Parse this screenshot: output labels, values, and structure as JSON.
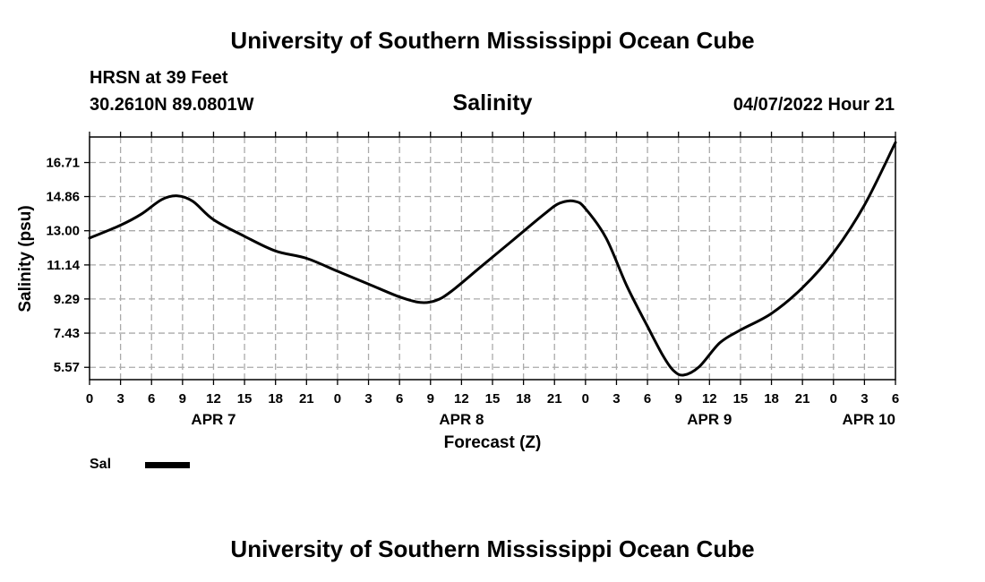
{
  "header": {
    "institution": "University of Southern Mississippi Ocean Cube",
    "station": "HRSN at 39 Feet",
    "coordinates": "30.2610N  89.0801W",
    "datetime": "04/07/2022 Hour 21"
  },
  "footer": {
    "institution": "University of Southern Mississippi Ocean Cube"
  },
  "legend": {
    "label": "Sal"
  },
  "chart_data": {
    "type": "line",
    "title": "Salinity",
    "xlabel": "Forecast (Z)",
    "ylabel": "Salinity (psu)",
    "x_unit": "hours since APR 7 00Z",
    "xlim": [
      0,
      78
    ],
    "ylim": [
      4.9,
      18.1
    ],
    "grid": true,
    "y_ticks": [
      "5.57",
      "7.43",
      "9.29",
      "11.14",
      "13.00",
      "14.86",
      "16.71"
    ],
    "y_tick_values": [
      5.57,
      7.43,
      9.29,
      11.14,
      13.0,
      14.86,
      16.71
    ],
    "x_ticks": [
      "0",
      "3",
      "6",
      "9",
      "12",
      "15",
      "18",
      "21",
      "0",
      "3",
      "6",
      "9",
      "12",
      "15",
      "18",
      "21",
      "0",
      "3",
      "6",
      "9",
      "12",
      "15",
      "18",
      "21",
      "0",
      "3",
      "6"
    ],
    "date_labels": [
      {
        "label": "APR 7",
        "hour": 12
      },
      {
        "label": "APR 8",
        "hour": 36
      },
      {
        "label": "APR 9",
        "hour": 60
      },
      {
        "label": "APR 10",
        "hour": 78
      }
    ],
    "series": [
      {
        "name": "Sal",
        "x": [
          0,
          3,
          5,
          7,
          8.5,
          10,
          12,
          15,
          18,
          21,
          24,
          27,
          30,
          32,
          33.5,
          35,
          38,
          41,
          44,
          45.5,
          47,
          48,
          50,
          52,
          54,
          55.5,
          56.5,
          57.5,
          59,
          61,
          63,
          66,
          69,
          72,
          75,
          78
        ],
        "y": [
          12.6,
          13.3,
          13.9,
          14.7,
          14.9,
          14.6,
          13.6,
          12.7,
          11.9,
          11.5,
          10.8,
          10.1,
          9.4,
          9.1,
          9.2,
          9.7,
          11.1,
          12.5,
          13.9,
          14.5,
          14.6,
          14.2,
          12.6,
          10.0,
          7.8,
          6.2,
          5.4,
          5.15,
          5.6,
          6.9,
          7.6,
          8.5,
          9.9,
          11.8,
          14.4,
          17.8
        ]
      }
    ]
  }
}
